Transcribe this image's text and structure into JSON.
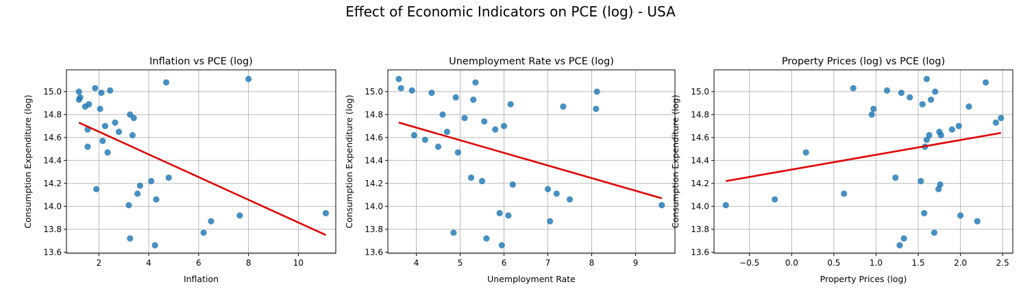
{
  "suptitle": "Effect of Economic Indicators on PCE (log) - USA",
  "colors": {
    "point": "#1f77b4",
    "line": "#e00000",
    "grid": "#b0b0b0",
    "axis": "#000000"
  },
  "chart_data": [
    {
      "type": "scatter",
      "title": "Inflation vs PCE (log)",
      "xlabel": "Inflation",
      "ylabel": "Consumption Expenditure (log)",
      "xlim": [
        0.7,
        11.5
      ],
      "ylim": [
        13.59,
        15.19
      ],
      "xticks": [
        2,
        4,
        6,
        8,
        10
      ],
      "yticks": [
        13.6,
        13.8,
        14.0,
        14.2,
        14.4,
        14.6,
        14.8,
        15.0
      ],
      "grid": true,
      "x": [
        1.2,
        1.2,
        1.25,
        1.45,
        1.6,
        1.55,
        1.55,
        1.85,
        1.9,
        2.05,
        2.1,
        2.15,
        2.25,
        2.35,
        2.45,
        2.65,
        2.8,
        3.2,
        3.25,
        3.25,
        3.35,
        3.4,
        3.55,
        3.65,
        4.1,
        4.25,
        4.3,
        4.7,
        4.8,
        6.2,
        6.5,
        7.65,
        8.0,
        11.1
      ],
      "y": [
        15.0,
        14.93,
        14.95,
        14.87,
        14.89,
        14.67,
        14.52,
        15.03,
        14.15,
        14.85,
        14.99,
        14.57,
        14.7,
        14.47,
        15.01,
        14.73,
        14.65,
        14.01,
        14.8,
        13.72,
        14.62,
        14.77,
        14.11,
        14.18,
        14.22,
        13.66,
        14.06,
        15.08,
        14.25,
        13.77,
        13.87,
        13.92,
        15.11,
        13.94
      ],
      "fit": {
        "x": [
          1.2,
          11.1
        ],
        "y": [
          14.73,
          13.75
        ]
      }
    },
    {
      "type": "scatter",
      "title": "Unemployment Rate vs PCE (log)",
      "xlabel": "Unemployment Rate",
      "ylabel": "Consumption Expenditure (log)",
      "xlim": [
        3.35,
        9.9
      ],
      "ylim": [
        13.59,
        15.19
      ],
      "xticks": [
        4,
        5,
        6,
        7,
        8,
        9
      ],
      "yticks": [
        13.6,
        13.8,
        14.0,
        14.2,
        14.4,
        14.6,
        14.8,
        15.0
      ],
      "grid": true,
      "x": [
        3.6,
        3.65,
        3.9,
        3.95,
        4.2,
        4.35,
        4.5,
        4.6,
        4.7,
        4.85,
        4.9,
        4.95,
        5.1,
        5.25,
        5.3,
        5.35,
        5.5,
        5.55,
        5.6,
        5.8,
        5.9,
        5.95,
        6.0,
        6.1,
        6.15,
        6.2,
        7.0,
        7.05,
        7.2,
        7.35,
        7.5,
        8.1,
        8.12,
        9.6
      ],
      "y": [
        15.11,
        15.03,
        15.01,
        14.62,
        14.58,
        14.99,
        14.52,
        14.8,
        14.65,
        13.77,
        14.95,
        14.47,
        14.77,
        14.25,
        14.93,
        15.08,
        14.22,
        14.74,
        13.72,
        14.67,
        13.94,
        13.66,
        14.7,
        13.92,
        14.89,
        14.19,
        14.15,
        13.87,
        14.11,
        14.87,
        14.06,
        14.85,
        15.0,
        14.01
      ],
      "fit": {
        "x": [
          3.6,
          9.6
        ],
        "y": [
          14.73,
          14.07
        ]
      }
    },
    {
      "type": "scatter",
      "title": "Property Prices (log) vs PCE (log)",
      "xlabel": "Property Prices (log)",
      "ylabel": "Consumption Expenditure (log)",
      "xlim": [
        -0.92,
        2.62
      ],
      "ylim": [
        13.59,
        15.19
      ],
      "xticks": [
        -0.5,
        0.0,
        0.5,
        1.0,
        1.5,
        2.0,
        2.5
      ],
      "xticklabels": [
        "−0.5",
        "0.0",
        "0.5",
        "1.0",
        "1.5",
        "2.0",
        "2.5"
      ],
      "yticks": [
        13.6,
        13.8,
        14.0,
        14.2,
        14.4,
        14.6,
        14.8,
        15.0
      ],
      "grid": true,
      "x": [
        -0.78,
        -0.2,
        0.17,
        0.62,
        0.73,
        0.95,
        0.97,
        1.13,
        1.23,
        1.28,
        1.3,
        1.33,
        1.4,
        1.53,
        1.55,
        1.57,
        1.58,
        1.6,
        1.6,
        1.63,
        1.65,
        1.69,
        1.7,
        1.74,
        1.75,
        1.76,
        1.77,
        1.9,
        1.98,
        2.0,
        2.1,
        2.2,
        2.3,
        2.42,
        2.48
      ],
      "y": [
        14.01,
        14.06,
        14.47,
        14.11,
        15.03,
        14.8,
        14.85,
        15.01,
        14.25,
        13.66,
        14.99,
        13.72,
        14.95,
        14.22,
        14.89,
        13.94,
        14.52,
        15.11,
        14.58,
        14.62,
        14.93,
        13.77,
        15.0,
        14.15,
        14.65,
        14.19,
        14.62,
        14.67,
        14.7,
        13.92,
        14.87,
        13.87,
        15.08,
        14.73,
        14.77
      ],
      "fit": {
        "x": [
          -0.78,
          2.48
        ],
        "y": [
          14.22,
          14.64
        ]
      }
    }
  ]
}
